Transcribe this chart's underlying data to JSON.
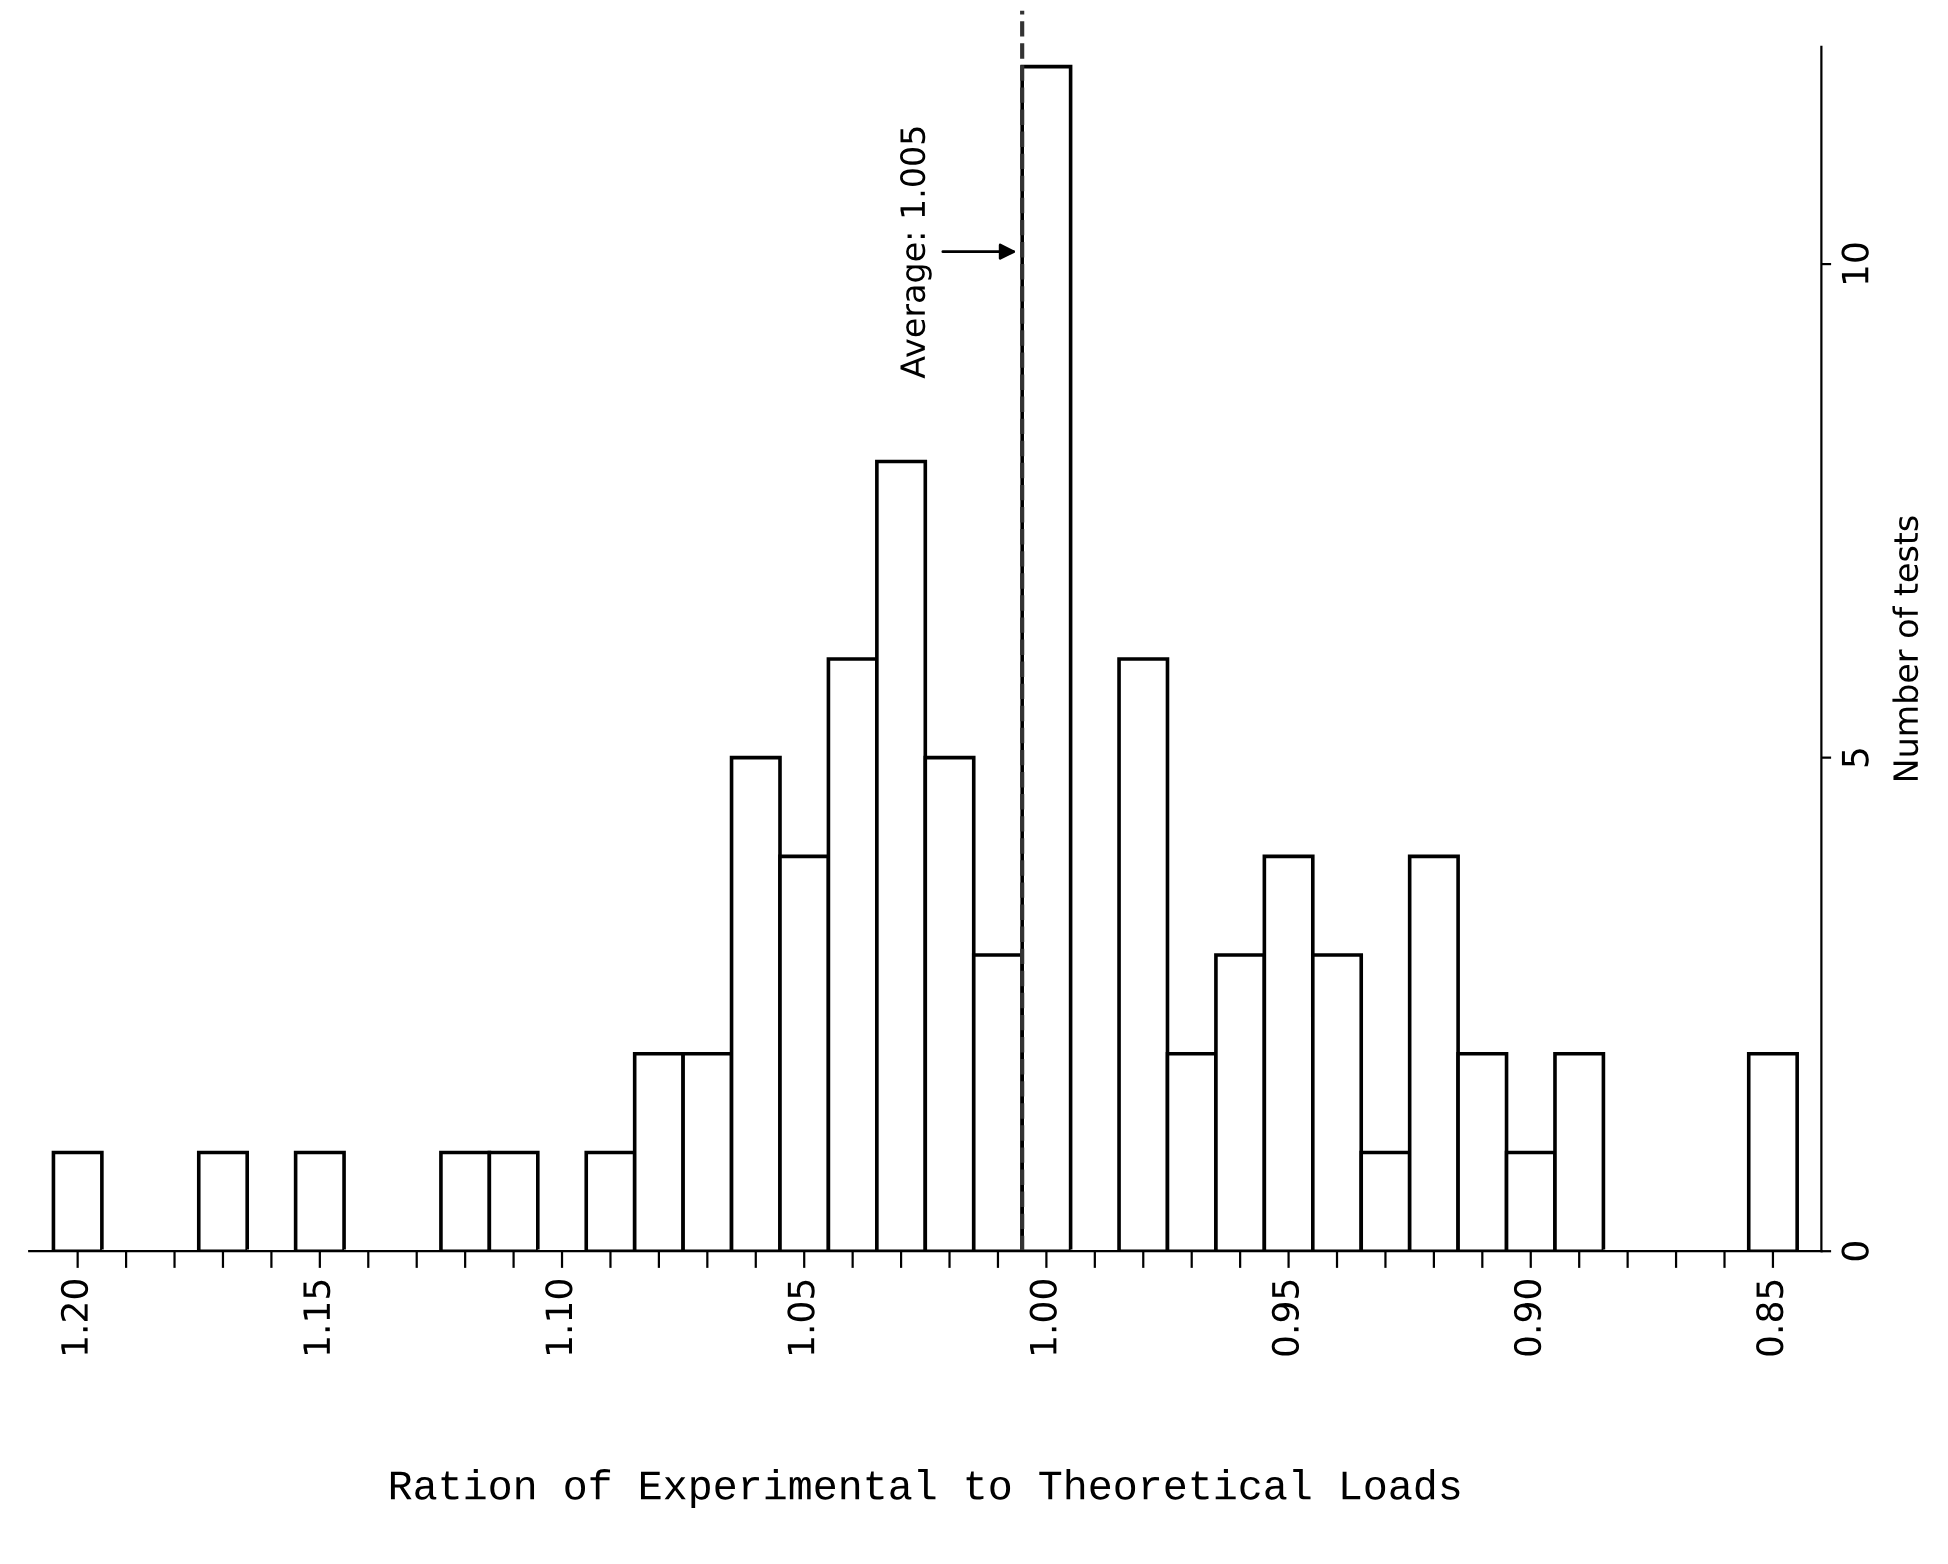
{
  "chart_data": {
    "type": "histogram",
    "xlabel": "Ration of Experimental to Theoretical Loads",
    "ylabel": "Number of tests",
    "bins": [
      1.205,
      1.195,
      1.185,
      1.175,
      1.165,
      1.155,
      1.145,
      1.135,
      1.125,
      1.115,
      1.105,
      1.095,
      1.085,
      1.075,
      1.065,
      1.055,
      1.045,
      1.035,
      1.025,
      1.015,
      1.005,
      0.995,
      0.985,
      0.975,
      0.965,
      0.955,
      0.945,
      0.935,
      0.925,
      0.915,
      0.905,
      0.895,
      0.885,
      0.875,
      0.865,
      0.855,
      0.845
    ],
    "values": [
      1,
      0,
      0,
      1,
      0,
      1,
      0,
      0,
      1,
      1,
      0,
      1,
      2,
      2,
      5,
      4,
      6,
      8,
      5,
      3,
      12,
      0,
      6,
      2,
      3,
      4,
      3,
      1,
      4,
      2,
      1,
      2,
      0,
      0,
      0,
      2
    ],
    "color": "#ffffff",
    "xlim": [
      1.21,
      0.84
    ],
    "xticks": [
      {
        "value": 1.2,
        "label": "1.20"
      },
      {
        "value": 1.15,
        "label": "1.15"
      },
      {
        "value": 1.1,
        "label": "1.10"
      },
      {
        "value": 1.05,
        "label": "1.05"
      },
      {
        "value": 1.0,
        "label": "1.00"
      },
      {
        "value": 0.95,
        "label": "0.95"
      },
      {
        "value": 0.9,
        "label": "0.90"
      },
      {
        "value": 0.85,
        "label": "0.85"
      },
      {
        "value": 1.19,
        "label": null
      },
      {
        "value": 1.18,
        "label": null
      },
      {
        "value": 1.17,
        "label": null
      },
      {
        "value": 1.16,
        "label": null
      },
      {
        "value": 1.14,
        "label": null
      },
      {
        "value": 1.13,
        "label": null
      },
      {
        "value": 1.12,
        "label": null
      },
      {
        "value": 1.11,
        "label": null
      },
      {
        "value": 1.09,
        "label": null
      },
      {
        "value": 1.08,
        "label": null
      },
      {
        "value": 1.07,
        "label": null
      },
      {
        "value": 1.06,
        "label": null
      },
      {
        "value": 1.04,
        "label": null
      },
      {
        "value": 1.03,
        "label": null
      },
      {
        "value": 1.02,
        "label": null
      },
      {
        "value": 1.01,
        "label": null
      },
      {
        "value": 0.99,
        "label": null
      },
      {
        "value": 0.98,
        "label": null
      },
      {
        "value": 0.97,
        "label": null
      },
      {
        "value": 0.96,
        "label": null
      },
      {
        "value": 0.94,
        "label": null
      },
      {
        "value": 0.93,
        "label": null
      },
      {
        "value": 0.92,
        "label": null
      },
      {
        "value": 0.91,
        "label": null
      },
      {
        "value": 0.89,
        "label": null
      },
      {
        "value": 0.88,
        "label": null
      },
      {
        "value": 0.87,
        "label": null
      },
      {
        "value": 0.86,
        "label": null
      }
    ],
    "ylim": [
      0,
      12.2
    ],
    "yticks": [
      0,
      5,
      10
    ],
    "ref_lines": [
      {
        "axis": "x",
        "value": 1.005,
        "label": "Average: 1.005",
        "line_style": "dashed",
        "color": "#333333"
      }
    ],
    "grid": false
  }
}
